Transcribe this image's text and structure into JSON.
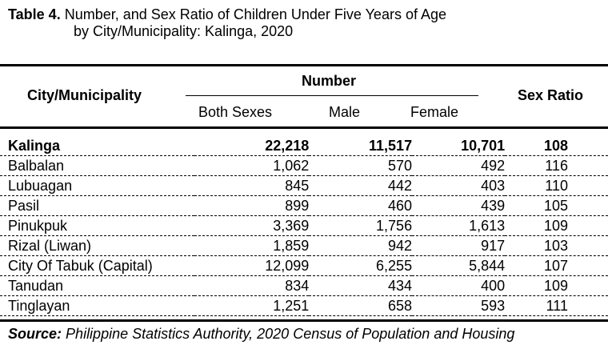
{
  "title": {
    "label": "Table 4.",
    "line1": "Number, and Sex Ratio of Children Under Five Years of Age",
    "line2": "by City/Municipality: Kalinga, 2020"
  },
  "headers": {
    "city": "City/Municipality",
    "number": "Number",
    "both": "Both Sexes",
    "male": "Male",
    "female": "Female",
    "ratio": "Sex Ratio"
  },
  "total": {
    "name": "Kalinga",
    "both": "22,218",
    "male": "11,517",
    "female": "10,701",
    "ratio": "108"
  },
  "rows": [
    {
      "name": "Balbalan",
      "both": "1,062",
      "male": "570",
      "female": "492",
      "ratio": "116"
    },
    {
      "name": "Lubuagan",
      "both": "845",
      "male": "442",
      "female": "403",
      "ratio": "110"
    },
    {
      "name": "Pasil",
      "both": "899",
      "male": "460",
      "female": "439",
      "ratio": "105"
    },
    {
      "name": "Pinukpuk",
      "both": "3,369",
      "male": "1,756",
      "female": "1,613",
      "ratio": "109"
    },
    {
      "name": "Rizal (Liwan)",
      "both": "1,859",
      "male": "942",
      "female": "917",
      "ratio": "103"
    },
    {
      "name": "City Of Tabuk (Capital)",
      "both": "12,099",
      "male": "6,255",
      "female": "5,844",
      "ratio": "107"
    },
    {
      "name": "Tanudan",
      "both": "834",
      "male": "434",
      "female": "400",
      "ratio": "109"
    },
    {
      "name": "Tinglayan",
      "both": "1,251",
      "male": "658",
      "female": "593",
      "ratio": "111"
    }
  ],
  "source": {
    "label": "Source:",
    "text": "Philippine Statistics Authority, 2020 Census of Population and Housing"
  }
}
